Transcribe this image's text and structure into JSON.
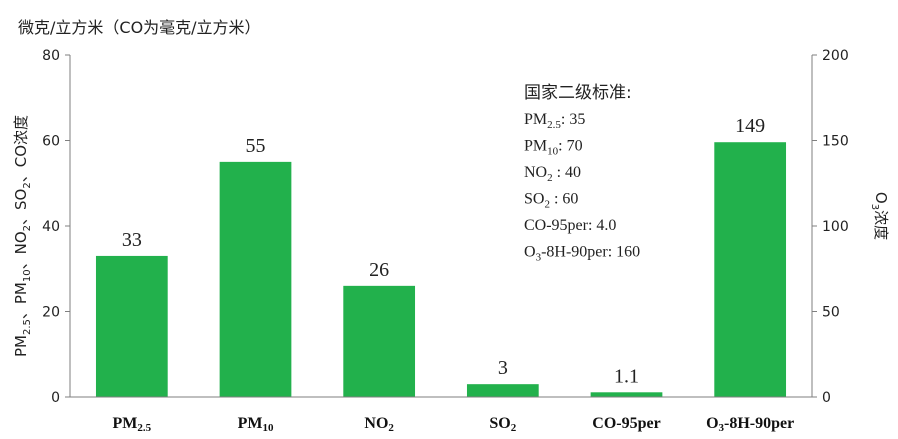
{
  "unit_label": "微克/立方米（CO为毫克/立方米）",
  "chart_data": {
    "type": "bar",
    "categories": [
      "PM2.5",
      "PM10",
      "NO2",
      "SO2",
      "CO-95per",
      "O3-8H-90per"
    ],
    "category_labels": [
      {
        "base": "PM",
        "sub": "2.5",
        "tail": ""
      },
      {
        "base": "PM",
        "sub": "10",
        "tail": ""
      },
      {
        "base": "NO",
        "sub": "2",
        "tail": ""
      },
      {
        "base": "SO",
        "sub": "2",
        "tail": ""
      },
      {
        "base": "CO-95per",
        "sub": "",
        "tail": ""
      },
      {
        "base": "O",
        "sub": "3",
        "tail": "-8H-90per"
      }
    ],
    "values": [
      33,
      55,
      26,
      3,
      1.1,
      149
    ],
    "value_labels": [
      "33",
      "55",
      "26",
      "3",
      "1.1",
      "149"
    ],
    "axis": [
      "left",
      "left",
      "left",
      "left",
      "left",
      "right"
    ],
    "bar_color": "#22b14c",
    "left_axis": {
      "ylim": [
        0,
        80
      ],
      "ticks": [
        "0",
        "20",
        "40",
        "60",
        "80"
      ],
      "label_parts": [
        {
          "t": "PM"
        },
        {
          "t": "2.5",
          "sub": true
        },
        {
          "t": "、PM"
        },
        {
          "t": "10",
          "sub": true
        },
        {
          "t": "、NO"
        },
        {
          "t": "2",
          "sub": true
        },
        {
          "t": "、SO"
        },
        {
          "t": "2",
          "sub": true
        },
        {
          "t": "、CO浓度"
        }
      ]
    },
    "right_axis": {
      "ylim": [
        0,
        200
      ],
      "ticks": [
        "0",
        "50",
        "100",
        "150",
        "200"
      ],
      "label_parts": [
        {
          "t": "O"
        },
        {
          "t": "3",
          "sub": true
        },
        {
          "t": "浓度"
        }
      ]
    },
    "standards": {
      "title": "国家二级标准:",
      "items": [
        [
          {
            "t": "PM"
          },
          {
            "t": "2.5",
            "sub": true
          },
          {
            "t": ": 35"
          }
        ],
        [
          {
            "t": "PM"
          },
          {
            "t": "10",
            "sub": true
          },
          {
            "t": ": 70"
          }
        ],
        [
          {
            "t": "NO"
          },
          {
            "t": "2",
            "sub": true
          },
          {
            "t": " : 40"
          }
        ],
        [
          {
            "t": "SO"
          },
          {
            "t": "2",
            "sub": true
          },
          {
            "t": "  : 60"
          }
        ],
        [
          {
            "t": "CO-95per: 4.0"
          }
        ],
        [
          {
            "t": "O"
          },
          {
            "t": "3",
            "sub": true
          },
          {
            "t": "-8H-90per: 160"
          }
        ]
      ]
    }
  }
}
